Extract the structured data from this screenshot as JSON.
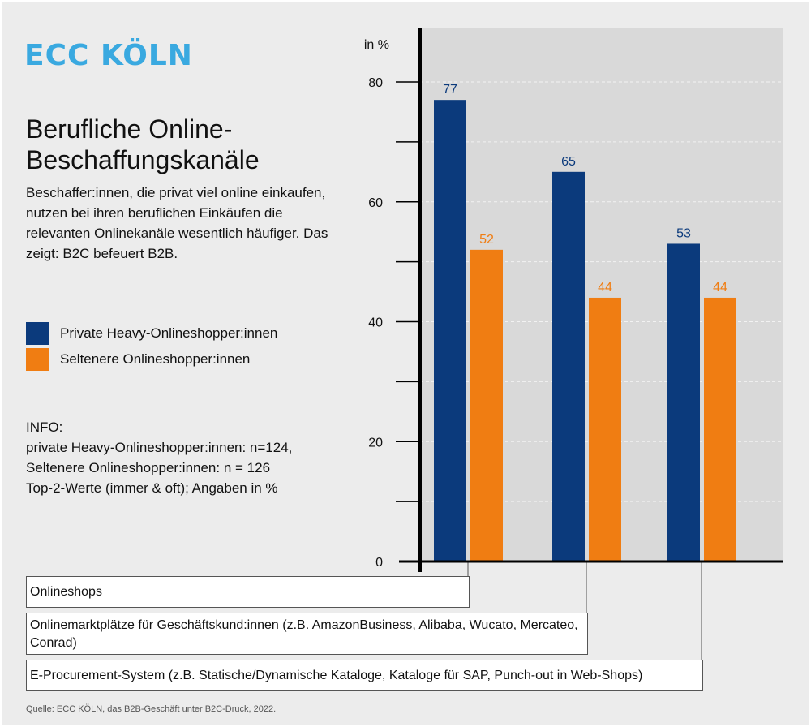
{
  "logo": "ECC KÖLN",
  "title": "Berufliche Online-Beschaffungskanäle",
  "subtitle": "Beschaffer:innen, die privat viel online einkaufen, nutzen bei ihren beruflichen Einkäufen die relevanten Onlinekanäle wesentlich häufiger. Das zeigt: B2C befeuert B2B.",
  "info": {
    "heading": "INFO:",
    "lines": [
      "private Heavy-Onlineshopper:innen: n=124,",
      "Seltenere Onlineshopper:innen: n = 126",
      "Top-2-Werte (immer & oft); Angaben in %"
    ]
  },
  "source": "Quelle: ECC KÖLN, das B2B-Geschäft unter B2C-Druck, 2022.",
  "chart_data": {
    "type": "bar",
    "ylabel": "in %",
    "ylim": [
      0,
      80
    ],
    "yticks": [
      0,
      20,
      40,
      60,
      80
    ],
    "ytick_labels": [
      "0",
      "20",
      "40",
      "60",
      "80"
    ],
    "grid": true,
    "legend_placement": "left",
    "categories": [
      "Onlineshops",
      "Onlinemarktplätze für Geschäftskund:innen (z.B. AmazonBusiness, Alibaba, Wucato, Mercateo, Conrad)",
      "E-Procurement-System (z.B. Statische/Dynamische Kataloge, Kataloge für SAP, Punch-out in Web-Shops)"
    ],
    "series": [
      {
        "name": "Private Heavy-Onlineshopper:innen",
        "color": "#0b3a7c",
        "values": [
          77,
          65,
          53
        ],
        "labels": [
          "77",
          "65",
          "53"
        ]
      },
      {
        "name": "Seltenere Onlineshopper:innen",
        "color": "#f07d12",
        "values": [
          52,
          44,
          44
        ],
        "labels": [
          "52",
          "44",
          "44"
        ]
      }
    ]
  }
}
